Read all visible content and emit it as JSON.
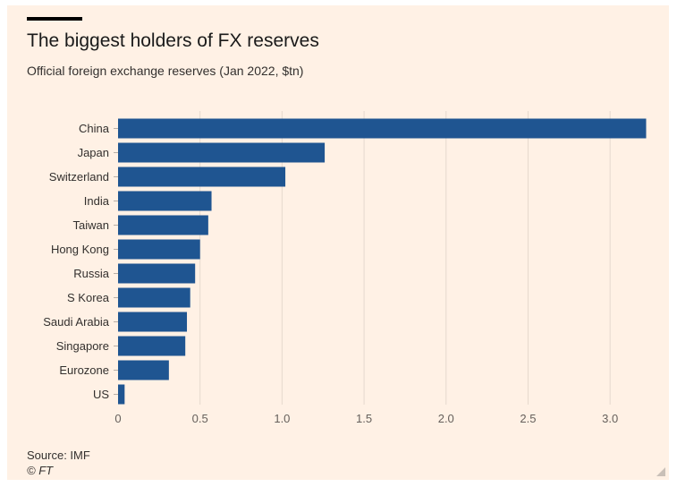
{
  "header": {
    "title": "The biggest holders of FX reserves",
    "subtitle": "Official foreign exchange reserves (Jan 2022, $tn)"
  },
  "footer": {
    "source": "Source: IMF",
    "credit": "© FT"
  },
  "colors": {
    "background": "#fff1e5",
    "bar": "#1f5591",
    "grid": "#e6d9ce"
  },
  "chart_data": {
    "type": "bar",
    "orientation": "horizontal",
    "categories": [
      "China",
      "Japan",
      "Switzerland",
      "India",
      "Taiwan",
      "Hong Kong",
      "Russia",
      "S Korea",
      "Saudi Arabia",
      "Singapore",
      "Eurozone",
      "US"
    ],
    "values": [
      3.22,
      1.26,
      1.02,
      0.57,
      0.55,
      0.5,
      0.47,
      0.44,
      0.42,
      0.41,
      0.31,
      0.04
    ],
    "xlim": [
      0,
      3.25
    ],
    "xticks": [
      0,
      0.5,
      1.0,
      1.5,
      2.0,
      2.5,
      3.0
    ],
    "xtick_labels": [
      "0",
      "0.5",
      "1.0",
      "1.5",
      "2.0",
      "2.5",
      "3.0"
    ],
    "grid": true,
    "legend": false
  }
}
